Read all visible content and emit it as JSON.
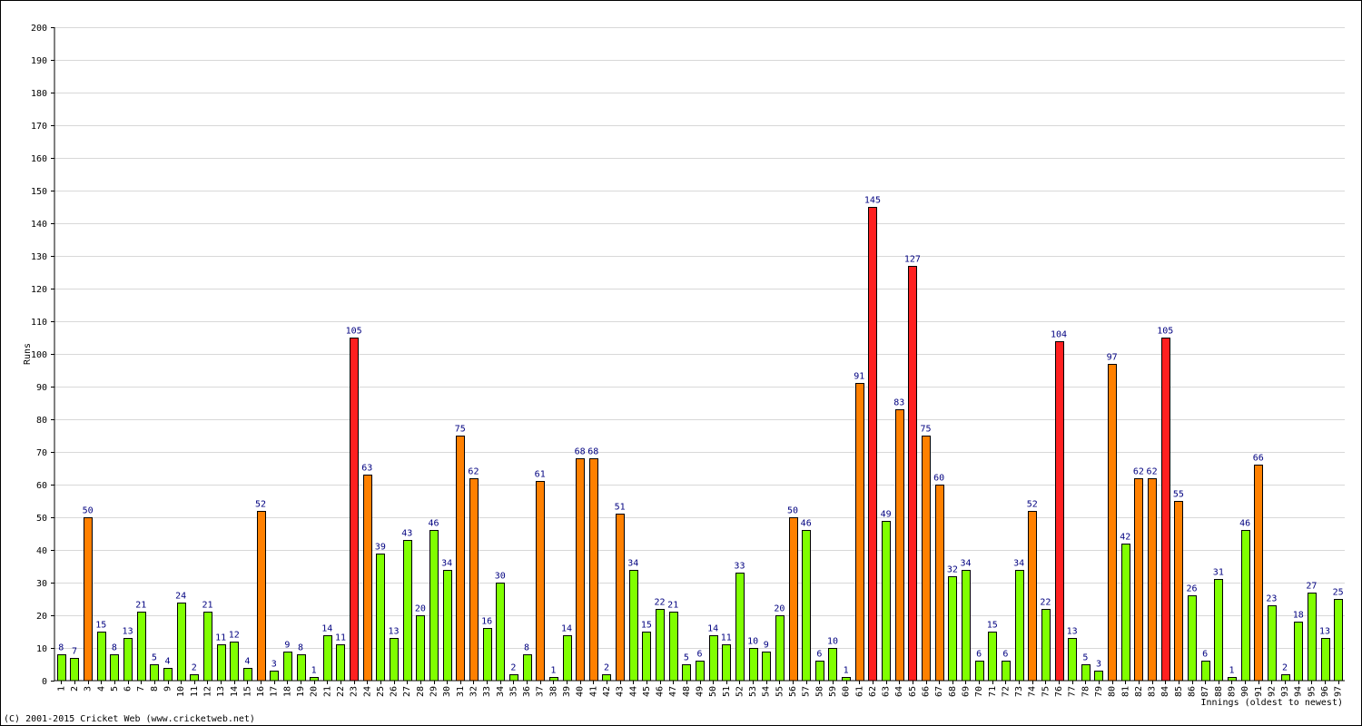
{
  "chart_data": {
    "type": "bar",
    "title": "",
    "ylabel": "Runs",
    "xlabel": "Innings (oldest to newest)",
    "ylim": [
      0,
      200
    ],
    "ytick_step": 10,
    "grid": "horizontal",
    "categories": [
      "1",
      "2",
      "3",
      "4",
      "5",
      "6",
      "7",
      "8",
      "9",
      "10",
      "11",
      "12",
      "13",
      "14",
      "15",
      "16",
      "17",
      "18",
      "19",
      "20",
      "21",
      "22",
      "23",
      "24",
      "25",
      "26",
      "27",
      "28",
      "29",
      "30",
      "31",
      "32",
      "33",
      "34",
      "35",
      "36",
      "37",
      "38",
      "39",
      "40",
      "41",
      "42",
      "43",
      "44",
      "45",
      "46",
      "47",
      "48",
      "49",
      "50",
      "51",
      "52",
      "53",
      "54",
      "55",
      "56",
      "57",
      "58",
      "59",
      "60",
      "61",
      "62",
      "63",
      "64",
      "65",
      "66",
      "67",
      "68",
      "69",
      "70",
      "71",
      "72",
      "73",
      "74",
      "75",
      "76",
      "77",
      "78",
      "79",
      "80",
      "81",
      "82",
      "83",
      "84",
      "85",
      "86",
      "87",
      "88",
      "89",
      "90",
      "91",
      "92",
      "93",
      "94",
      "95",
      "96",
      "97"
    ],
    "values": [
      8,
      7,
      50,
      15,
      8,
      13,
      21,
      5,
      4,
      24,
      2,
      21,
      11,
      12,
      4,
      52,
      3,
      9,
      8,
      1,
      14,
      11,
      105,
      63,
      39,
      13,
      43,
      20,
      46,
      34,
      75,
      62,
      16,
      30,
      2,
      8,
      61,
      1,
      14,
      68,
      68,
      2,
      51,
      34,
      15,
      22,
      21,
      5,
      6,
      14,
      11,
      33,
      10,
      9,
      20,
      50,
      46,
      6,
      10,
      1,
      91,
      145,
      49,
      83,
      127,
      75,
      60,
      32,
      34,
      6,
      15,
      6,
      34,
      52,
      22,
      104,
      13,
      5,
      3,
      97,
      42,
      62,
      62,
      105,
      55,
      26,
      6,
      31,
      1,
      46,
      66,
      23,
      2,
      18,
      27,
      13,
      25
    ],
    "colors": {
      "below_50": "#80ff00",
      "fifty": "#ff8000",
      "hundred": "#ff2020",
      "bar_edge": "#000000",
      "label": "#000080",
      "grid": "#d8d8d8"
    }
  },
  "footer": {
    "copyright": "(C) 2001-2015 Cricket Web (www.cricketweb.net)"
  }
}
